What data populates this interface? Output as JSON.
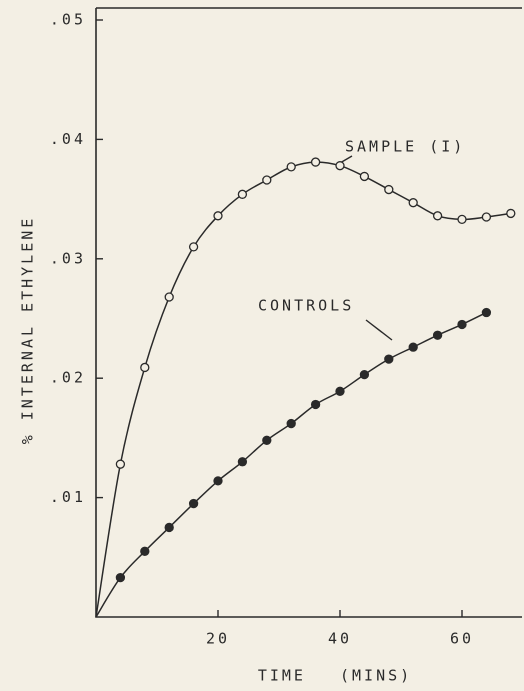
{
  "chart_data": {
    "type": "line",
    "ylabel": "% INTERNAL ETHYLENE",
    "xlabel": "TIME (MINS)",
    "annotations": [
      "SAMPLE (I)",
      "CONTROLS"
    ],
    "xlim": [
      0,
      70
    ],
    "ylim": [
      0,
      0.05
    ],
    "xticks": [
      20,
      40,
      60
    ],
    "yticks": [
      {
        "value": 0.01,
        "label": ".01"
      },
      {
        "value": 0.02,
        "label": ".02"
      },
      {
        "value": 0.03,
        "label": ".03"
      },
      {
        "value": 0.04,
        "label": ".04"
      },
      {
        "value": 0.05,
        "label": ".05"
      }
    ],
    "series": [
      {
        "name": "SAMPLE (I)",
        "color": "#2a2a2a",
        "marker": "open",
        "x": [
          0,
          4,
          8,
          12,
          16,
          20,
          24,
          28,
          32,
          36,
          40,
          44,
          48,
          52,
          56,
          60,
          64,
          68
        ],
        "values": [
          0,
          0.0128,
          0.0209,
          0.0268,
          0.031,
          0.0336,
          0.0354,
          0.0366,
          0.0377,
          0.0381,
          0.0378,
          0.0369,
          0.0358,
          0.0347,
          0.0336,
          0.0333,
          0.0335,
          0.0338
        ]
      },
      {
        "name": "CONTROLS",
        "color": "#2a2a2a",
        "marker": "filled",
        "x": [
          0,
          4,
          8,
          12,
          16,
          20,
          24,
          28,
          32,
          36,
          40,
          44,
          48,
          52,
          56,
          60,
          64
        ],
        "values": [
          0,
          0.0033,
          0.0055,
          0.0075,
          0.0095,
          0.0114,
          0.013,
          0.0148,
          0.0162,
          0.0178,
          0.0189,
          0.0203,
          0.0216,
          0.0226,
          0.0236,
          0.0245,
          0.0255
        ]
      }
    ]
  }
}
